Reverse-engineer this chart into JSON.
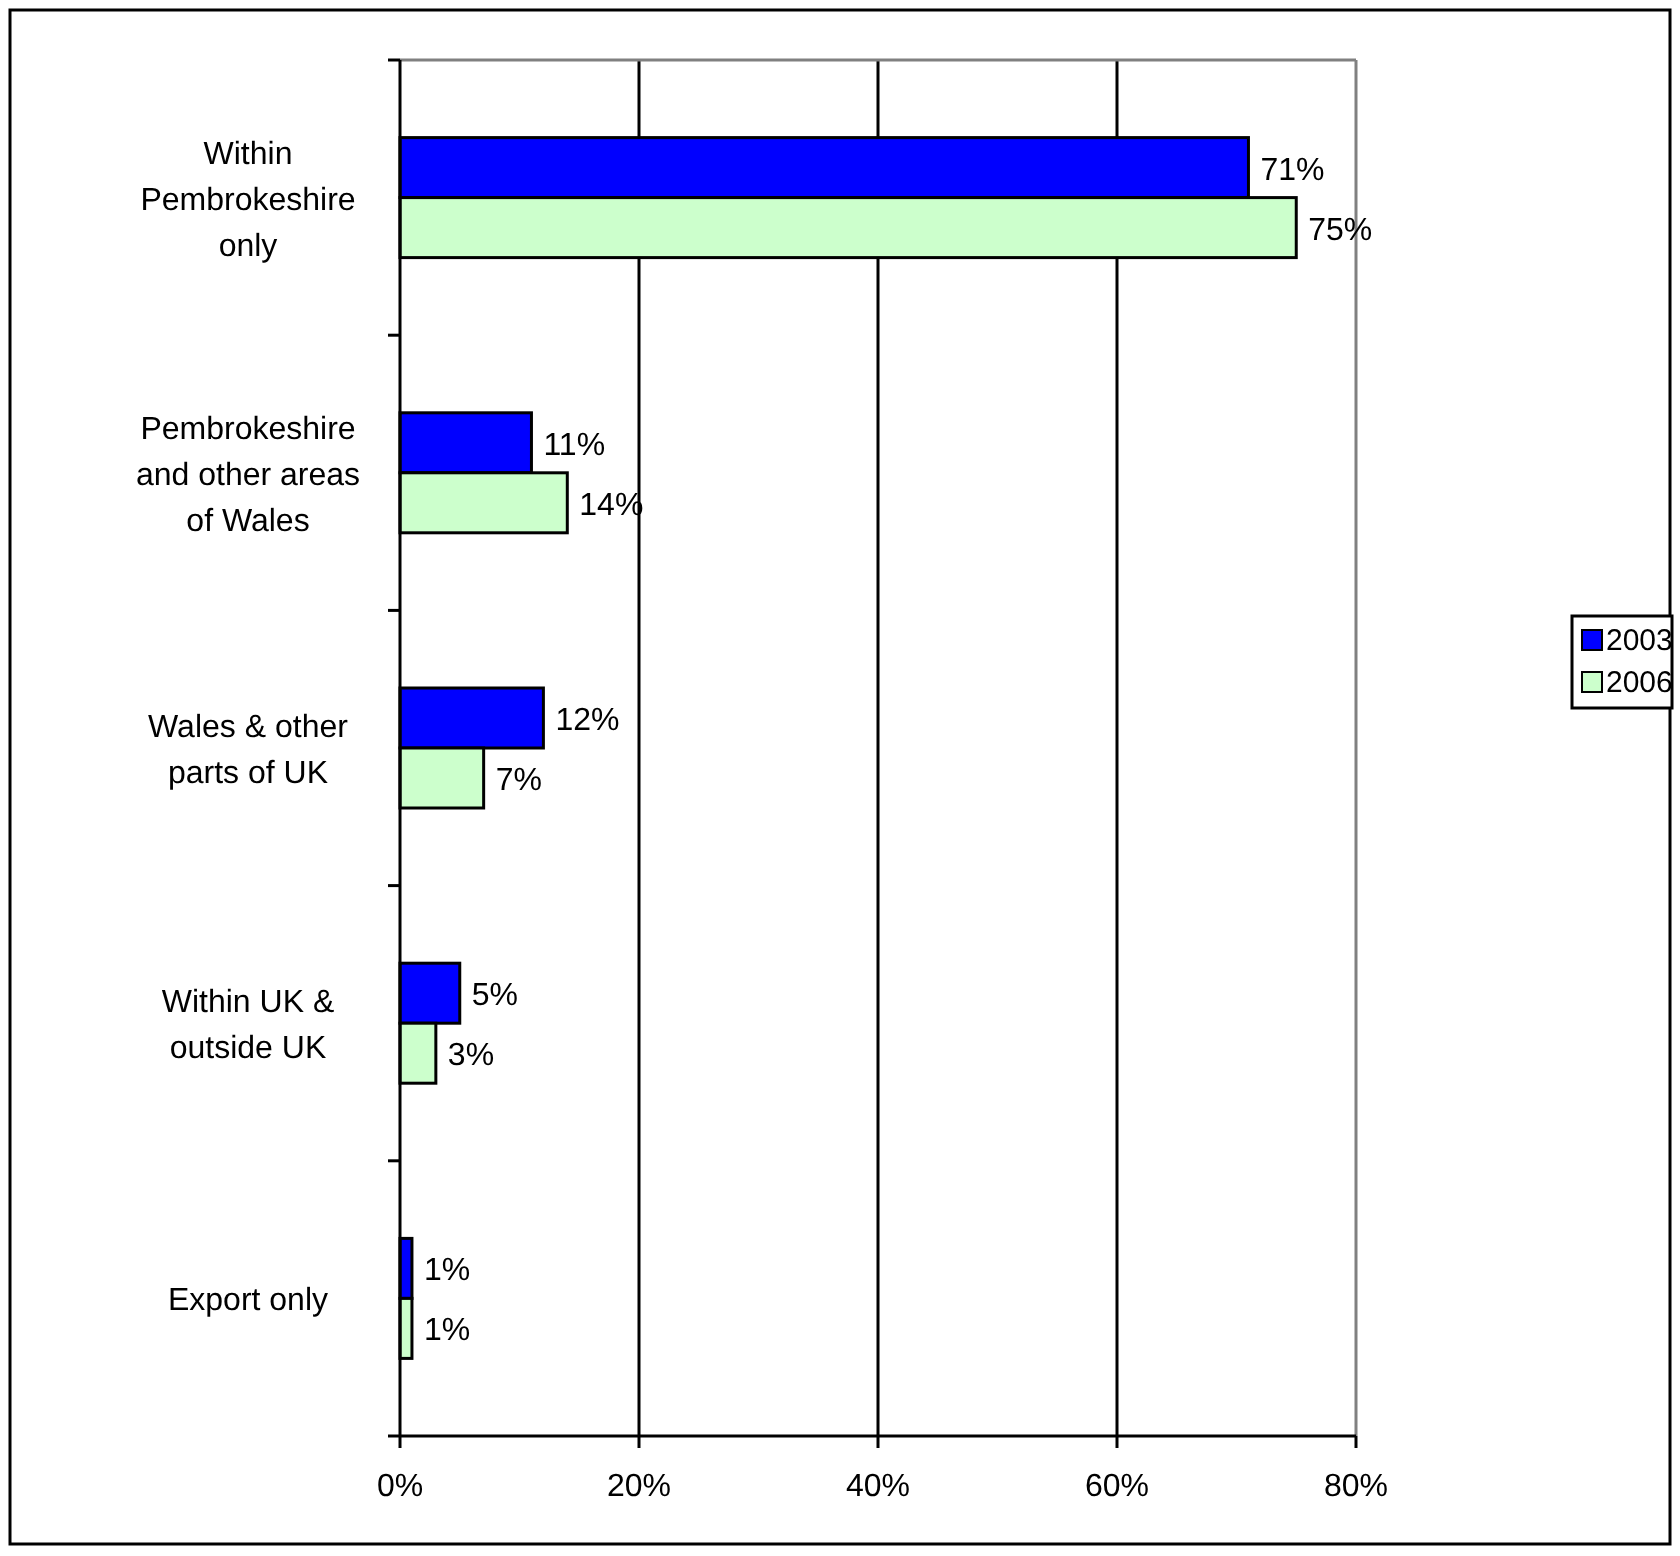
{
  "chart_data": {
    "type": "bar",
    "orientation": "horizontal",
    "categories": [
      "Within Pembrokeshire only",
      "Pembrokeshire and other areas of Wales",
      "Wales & other parts of UK",
      "Within UK & outside UK",
      "Export only"
    ],
    "series": [
      {
        "name": "2003",
        "color": "#0000ff",
        "values": [
          71,
          11,
          12,
          5,
          1
        ],
        "value_labels": [
          "71%",
          "11%",
          "12%",
          "5%",
          "1%"
        ]
      },
      {
        "name": "2006",
        "color": "#ccffcc",
        "values": [
          75,
          14,
          7,
          3,
          1
        ],
        "value_labels": [
          "75%",
          "14%",
          "7%",
          "3%",
          "1%"
        ]
      }
    ],
    "xlim": [
      0,
      80
    ],
    "xticks": [
      {
        "value": 0,
        "label": "0%"
      },
      {
        "value": 20,
        "label": "20%"
      },
      {
        "value": 40,
        "label": "40%"
      },
      {
        "value": 60,
        "label": "60%"
      },
      {
        "value": 80,
        "label": "80%"
      }
    ],
    "grid": "x",
    "legend": "right"
  }
}
